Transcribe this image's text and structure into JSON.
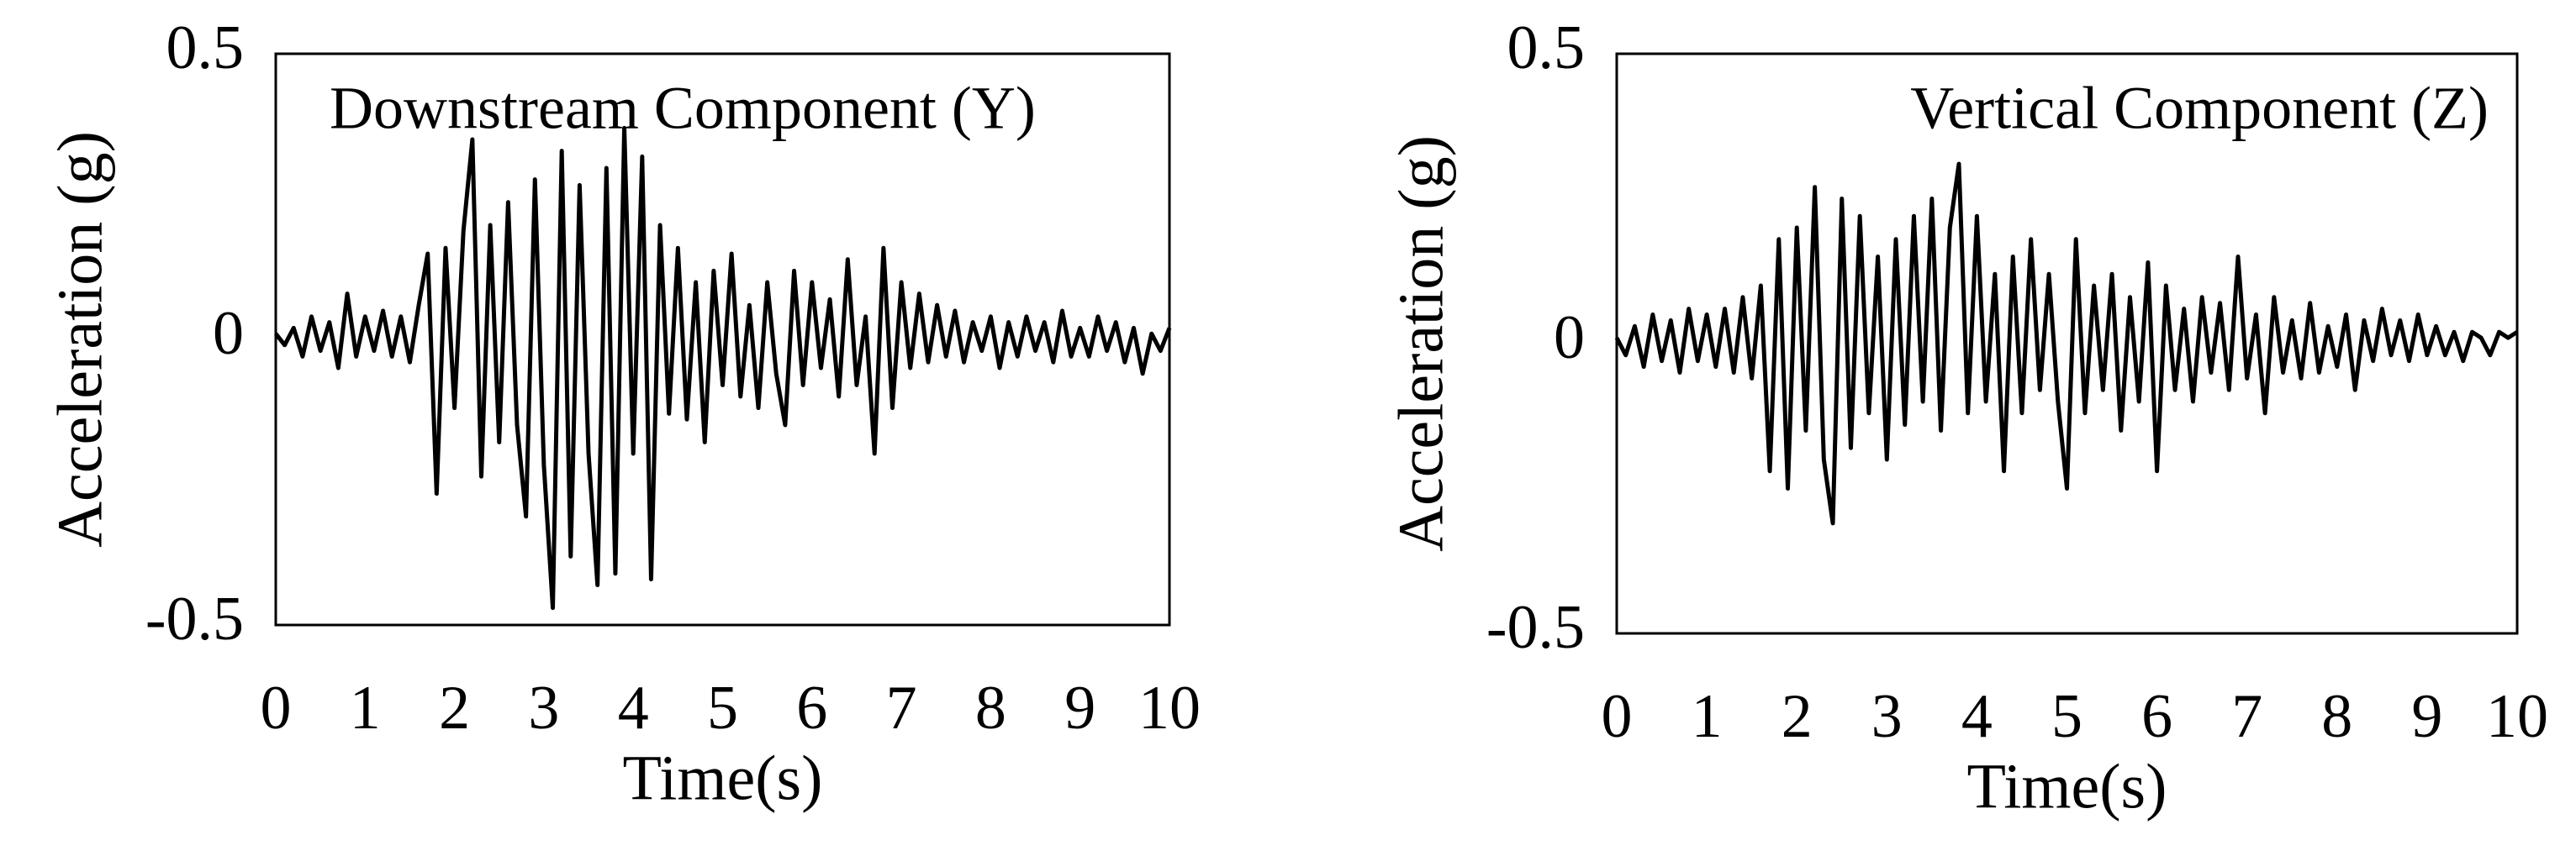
{
  "chart_data": [
    {
      "type": "line",
      "title": "Downstream Component (Y)",
      "x_label": "Time(s)",
      "y_label": "Acceleration (g)",
      "x": [
        0,
        0.1,
        0.2,
        0.3,
        0.4,
        0.5,
        0.6,
        0.7,
        0.8,
        0.9,
        1,
        1.1,
        1.2,
        1.3,
        1.4,
        1.5,
        1.6,
        1.7,
        1.8,
        1.9,
        2,
        2.1,
        2.2,
        2.3,
        2.4,
        2.5,
        2.6,
        2.7,
        2.8,
        2.9,
        3,
        3.1,
        3.2,
        3.3,
        3.4,
        3.5,
        3.6,
        3.7,
        3.8,
        3.9,
        4,
        4.1,
        4.2,
        4.3,
        4.4,
        4.5,
        4.6,
        4.7,
        4.8,
        4.9,
        5,
        5.1,
        5.2,
        5.3,
        5.4,
        5.5,
        5.6,
        5.7,
        5.8,
        5.9,
        6,
        6.1,
        6.2,
        6.3,
        6.4,
        6.5,
        6.6,
        6.7,
        6.8,
        6.9,
        7,
        7.1,
        7.2,
        7.3,
        7.4,
        7.5,
        7.6,
        7.7,
        7.8,
        7.9,
        8,
        8.1,
        8.2,
        8.3,
        8.4,
        8.5,
        8.6,
        8.7,
        8.8,
        8.9,
        9,
        9.1,
        9.2,
        9.3,
        9.4,
        9.5,
        9.6,
        9.7,
        9.8,
        9.9,
        10
      ],
      "series": [
        {
          "color": "#000000",
          "values": [
            0.01,
            -0.01,
            0.02,
            -0.03,
            0.04,
            -0.02,
            0.03,
            -0.05,
            0.08,
            -0.03,
            0.04,
            -0.02,
            0.05,
            -0.03,
            0.04,
            -0.04,
            0.06,
            0.15,
            -0.27,
            0.16,
            -0.12,
            0.19,
            0.35,
            -0.24,
            0.2,
            -0.18,
            0.24,
            -0.15,
            -0.31,
            0.28,
            -0.22,
            -0.47,
            0.33,
            -0.38,
            0.27,
            -0.2,
            -0.43,
            0.3,
            -0.41,
            0.37,
            -0.2,
            0.32,
            -0.42,
            0.2,
            -0.13,
            0.16,
            -0.14,
            0.1,
            -0.18,
            0.12,
            -0.08,
            0.15,
            -0.1,
            0.06,
            -0.12,
            0.1,
            -0.06,
            -0.15,
            0.12,
            -0.08,
            0.1,
            -0.05,
            0.07,
            -0.1,
            0.14,
            -0.08,
            0.04,
            -0.2,
            0.16,
            -0.12,
            0.1,
            -0.05,
            0.08,
            -0.04,
            0.06,
            -0.03,
            0.05,
            -0.04,
            0.03,
            -0.02,
            0.04,
            -0.05,
            0.03,
            -0.03,
            0.04,
            -0.02,
            0.03,
            -0.04,
            0.05,
            -0.03,
            0.02,
            -0.03,
            0.04,
            -0.02,
            0.03,
            -0.04,
            0.02,
            -0.06,
            0.01,
            -0.02,
            0.02
          ]
        }
      ],
      "xlim": [
        0,
        10
      ],
      "xticks": [
        0,
        1,
        2,
        3,
        4,
        5,
        6,
        7,
        8,
        9,
        10
      ],
      "ylim": [
        -0.5,
        0.5
      ],
      "yticks": [
        0.5,
        0,
        -0.5
      ],
      "grid": false
    },
    {
      "type": "line",
      "title": "Vertical Component (Z)",
      "x_label": "Time(s)",
      "y_label": "Acceleration (g)",
      "x": [
        0,
        0.1,
        0.2,
        0.3,
        0.4,
        0.5,
        0.6,
        0.7,
        0.8,
        0.9,
        1,
        1.1,
        1.2,
        1.3,
        1.4,
        1.5,
        1.6,
        1.7,
        1.8,
        1.9,
        2,
        2.1,
        2.2,
        2.3,
        2.4,
        2.5,
        2.6,
        2.7,
        2.8,
        2.9,
        3,
        3.1,
        3.2,
        3.3,
        3.4,
        3.5,
        3.6,
        3.7,
        3.8,
        3.9,
        4,
        4.1,
        4.2,
        4.3,
        4.4,
        4.5,
        4.6,
        4.7,
        4.8,
        4.9,
        5,
        5.1,
        5.2,
        5.3,
        5.4,
        5.5,
        5.6,
        5.7,
        5.8,
        5.9,
        6,
        6.1,
        6.2,
        6.3,
        6.4,
        6.5,
        6.6,
        6.7,
        6.8,
        6.9,
        7,
        7.1,
        7.2,
        7.3,
        7.4,
        7.5,
        7.6,
        7.7,
        7.8,
        7.9,
        8,
        8.1,
        8.2,
        8.3,
        8.4,
        8.5,
        8.6,
        8.7,
        8.8,
        8.9,
        9,
        9.1,
        9.2,
        9.3,
        9.4,
        9.5,
        9.6,
        9.7,
        9.8,
        9.9,
        10
      ],
      "series": [
        {
          "color": "#000000",
          "values": [
            0.01,
            -0.02,
            0.03,
            -0.04,
            0.05,
            -0.03,
            0.04,
            -0.05,
            0.06,
            -0.03,
            0.05,
            -0.04,
            0.06,
            -0.05,
            0.08,
            -0.06,
            0.1,
            -0.22,
            0.18,
            -0.25,
            0.2,
            -0.15,
            0.27,
            -0.2,
            -0.31,
            0.25,
            -0.18,
            0.22,
            -0.12,
            0.15,
            -0.2,
            0.18,
            -0.14,
            0.22,
            -0.1,
            0.25,
            -0.15,
            0.2,
            0.31,
            -0.12,
            0.22,
            -0.1,
            0.12,
            -0.22,
            0.15,
            -0.12,
            0.18,
            -0.08,
            0.12,
            -0.1,
            -0.25,
            0.18,
            -0.12,
            0.1,
            -0.08,
            0.12,
            -0.15,
            0.08,
            -0.1,
            0.14,
            -0.22,
            0.1,
            -0.08,
            0.06,
            -0.1,
            0.08,
            -0.05,
            0.07,
            -0.08,
            0.15,
            -0.06,
            0.05,
            -0.12,
            0.08,
            -0.05,
            0.04,
            -0.06,
            0.07,
            -0.05,
            0.03,
            -0.04,
            0.05,
            -0.08,
            0.04,
            -0.03,
            0.06,
            -0.02,
            0.04,
            -0.03,
            0.05,
            -0.02,
            0.03,
            -0.02,
            0.02,
            -0.03,
            0.02,
            0.01,
            -0.02,
            0.02,
            0.01,
            0.02
          ]
        }
      ],
      "xlim": [
        0,
        10
      ],
      "xticks": [
        0,
        1,
        2,
        3,
        4,
        5,
        6,
        7,
        8,
        9,
        10
      ],
      "ylim": [
        -0.5,
        0.5
      ],
      "yticks": [
        0.5,
        0,
        -0.5
      ],
      "grid": false
    }
  ]
}
